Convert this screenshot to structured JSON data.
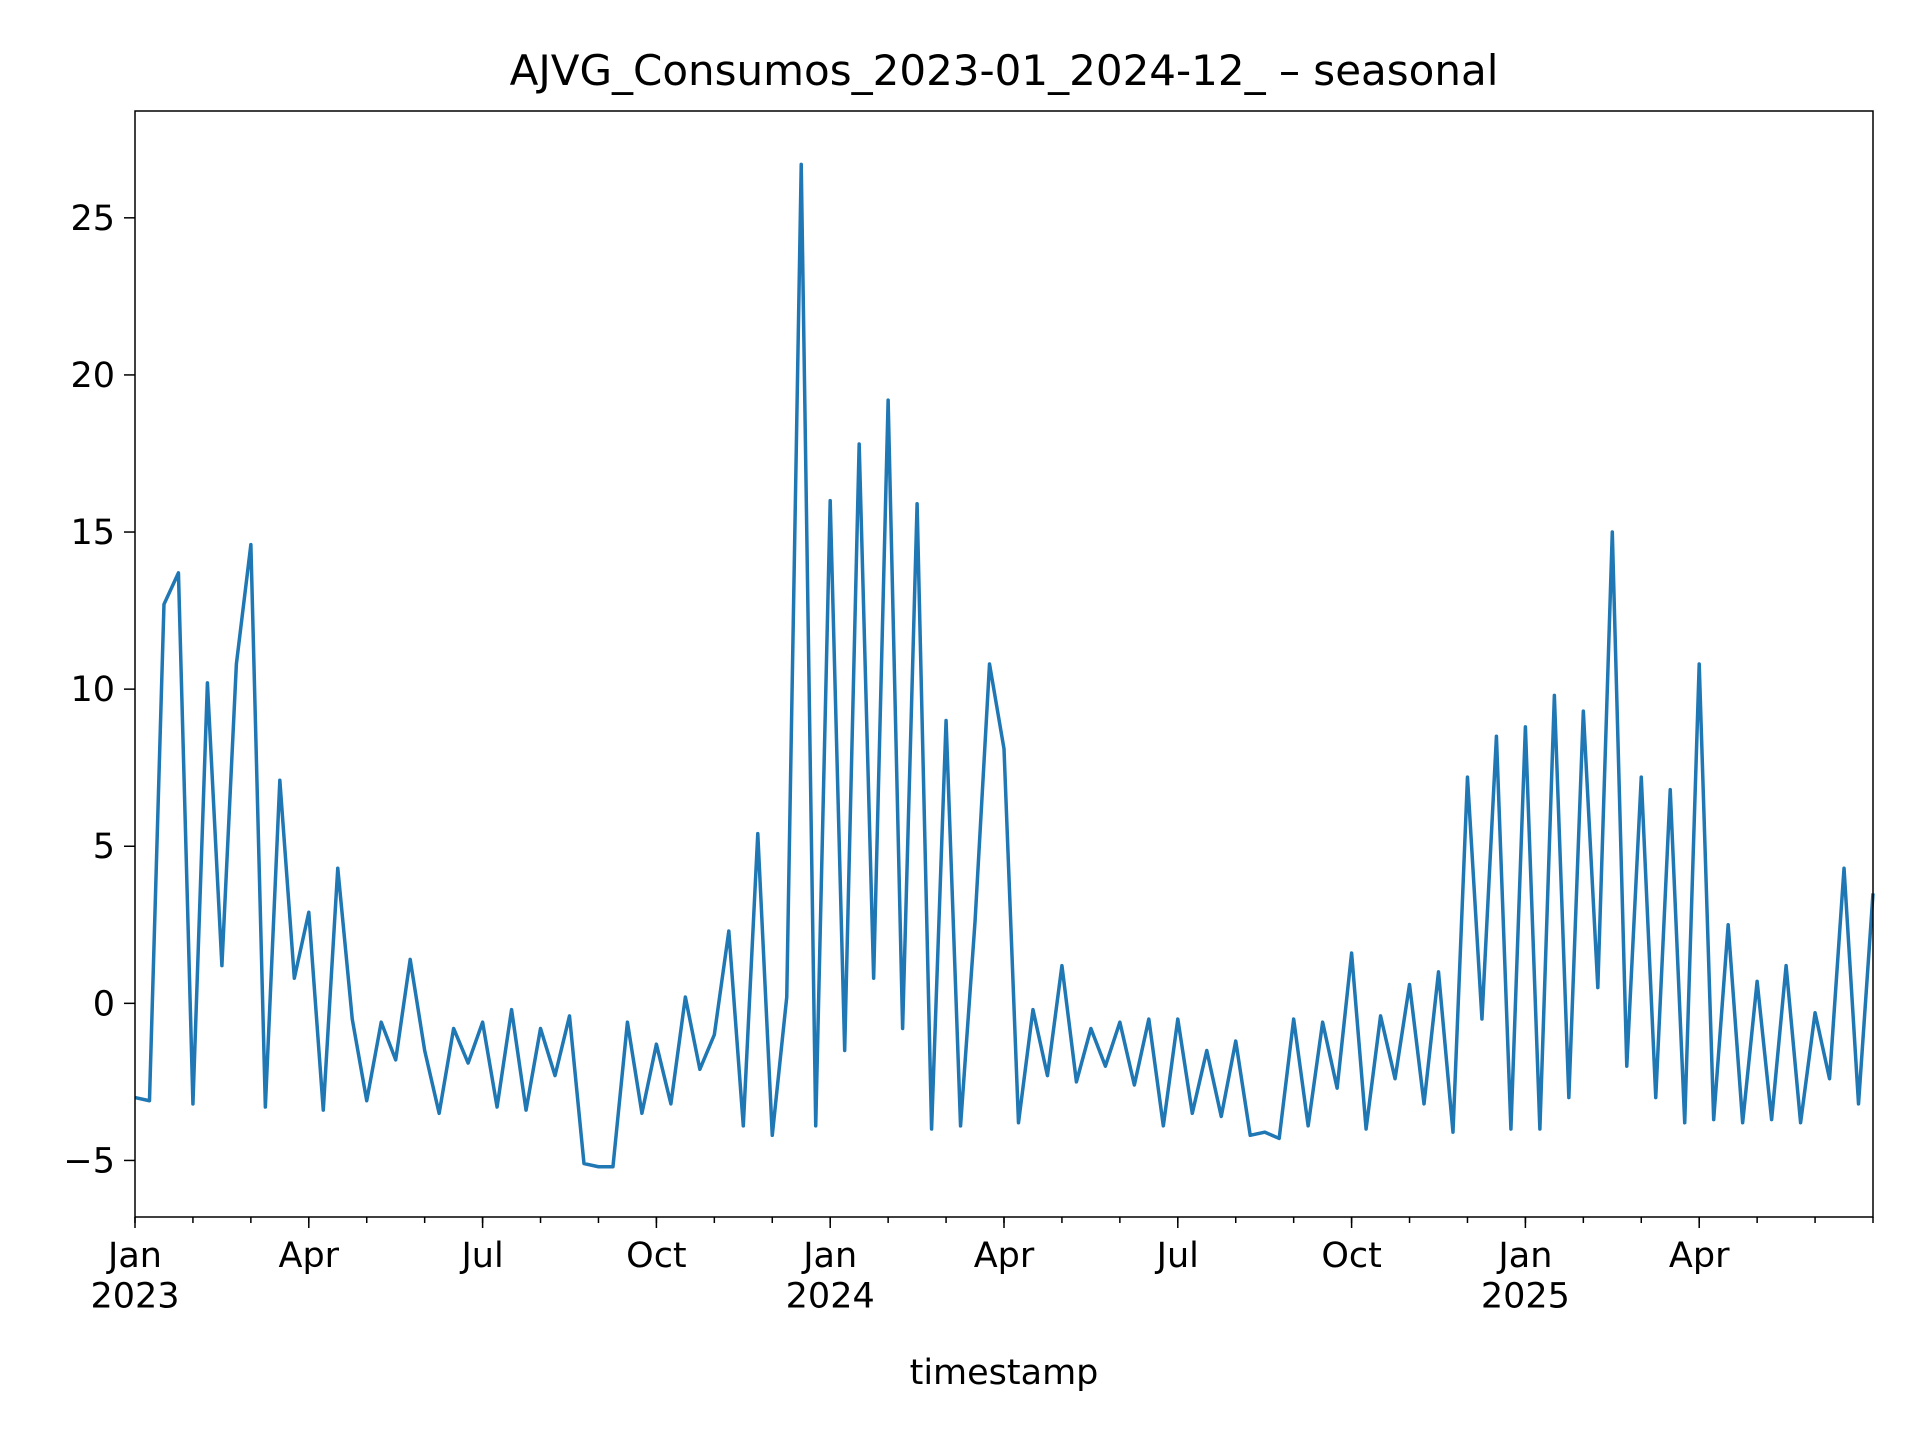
{
  "chart_data": {
    "type": "line",
    "title": "AJVG_Consumos_2023-01_2024-12_ – seasonal",
    "x_label": "timestamp",
    "color": "#1f77b4",
    "xlim": [
      0,
      30
    ],
    "xticks": [
      {
        "value": 0,
        "label": "Jan\n2023"
      },
      {
        "value": 3,
        "label": "Apr"
      },
      {
        "value": 6,
        "label": "Jul"
      },
      {
        "value": 9,
        "label": "Oct"
      },
      {
        "value": 12,
        "label": "Jan\n2024"
      },
      {
        "value": 15,
        "label": "Apr"
      },
      {
        "value": 18,
        "label": "Jul"
      },
      {
        "value": 21,
        "label": "Oct"
      },
      {
        "value": 24,
        "label": "Jan\n2025"
      },
      {
        "value": 27,
        "label": "Apr"
      }
    ],
    "ylim": [
      -6.8,
      28.4
    ],
    "yticks": [
      {
        "value": -5,
        "label": "−5"
      },
      0,
      5,
      10,
      15,
      20,
      25
    ],
    "grid": false,
    "x": [
      0,
      0.25,
      0.5,
      0.75,
      1,
      1.25,
      1.5,
      1.75,
      2,
      2.25,
      2.5,
      2.75,
      3,
      3.25,
      3.5,
      3.75,
      4,
      4.25,
      4.5,
      4.75,
      5,
      5.25,
      5.5,
      5.75,
      6,
      6.25,
      6.5,
      6.75,
      7,
      7.25,
      7.5,
      7.75,
      8,
      8.25,
      8.5,
      8.75,
      9,
      9.25,
      9.5,
      9.75,
      10,
      10.25,
      10.5,
      10.75,
      11,
      11.25,
      11.5,
      11.75,
      12,
      12.25,
      12.5,
      12.75,
      13,
      13.25,
      13.5,
      13.75,
      14,
      14.25,
      14.5,
      14.75,
      15,
      15.25,
      15.5,
      15.75,
      16,
      16.25,
      16.5,
      16.75,
      17,
      17.25,
      17.5,
      17.75,
      18,
      18.25,
      18.5,
      18.75,
      19,
      19.25,
      19.5,
      19.75,
      20,
      20.25,
      20.5,
      20.75,
      21,
      21.25,
      21.5,
      21.75,
      22,
      22.25,
      22.5,
      22.75,
      23,
      23.25,
      23.5,
      23.75,
      24,
      24.25,
      24.5,
      24.75,
      25,
      25.25,
      25.5,
      25.75,
      26,
      26.25,
      26.5,
      26.75,
      27,
      27.25,
      27.5,
      27.75,
      28,
      28.25,
      28.5,
      28.75,
      29,
      29.25,
      29.5,
      29.75,
      30
    ],
    "values": [
      -3.0,
      -3.1,
      12.7,
      13.7,
      -3.2,
      10.2,
      1.2,
      10.8,
      14.6,
      -3.3,
      7.1,
      0.8,
      2.9,
      -3.4,
      4.3,
      -0.5,
      -3.1,
      -0.6,
      -1.8,
      1.4,
      -1.5,
      -3.5,
      -0.8,
      -1.9,
      -0.6,
      -3.3,
      -0.2,
      -3.4,
      -0.8,
      -2.3,
      -0.4,
      -5.1,
      -5.2,
      -5.2,
      -0.6,
      -3.5,
      -1.3,
      -3.2,
      0.2,
      -2.1,
      -1.0,
      2.3,
      -3.9,
      5.4,
      -4.2,
      0.2,
      26.7,
      -3.9,
      16.0,
      -1.5,
      17.8,
      0.8,
      19.2,
      -0.8,
      15.9,
      -4.0,
      9.0,
      -3.9,
      2.6,
      10.8,
      8.1,
      -3.8,
      -0.2,
      -2.3,
      1.2,
      -2.5,
      -0.8,
      -2.0,
      -0.6,
      -2.6,
      -0.5,
      -3.9,
      -0.5,
      -3.5,
      -1.5,
      -3.6,
      -1.2,
      -4.2,
      -4.1,
      -4.3,
      -0.5,
      -3.9,
      -0.6,
      -2.7,
      1.6,
      -4.0,
      -0.4,
      -2.4,
      0.6,
      -3.2,
      1.0,
      -4.1,
      7.2,
      -0.5,
      8.5,
      -4.0,
      8.8,
      -4.0,
      9.8,
      -3.0,
      9.3,
      0.5,
      15.0,
      -2.0,
      7.2,
      -3.0,
      6.8,
      -3.8,
      10.8,
      -3.7,
      2.5,
      -3.8,
      0.7,
      -3.7,
      1.2,
      -3.8,
      -0.3,
      -2.4,
      4.3,
      -3.2,
      3.5
    ]
  }
}
